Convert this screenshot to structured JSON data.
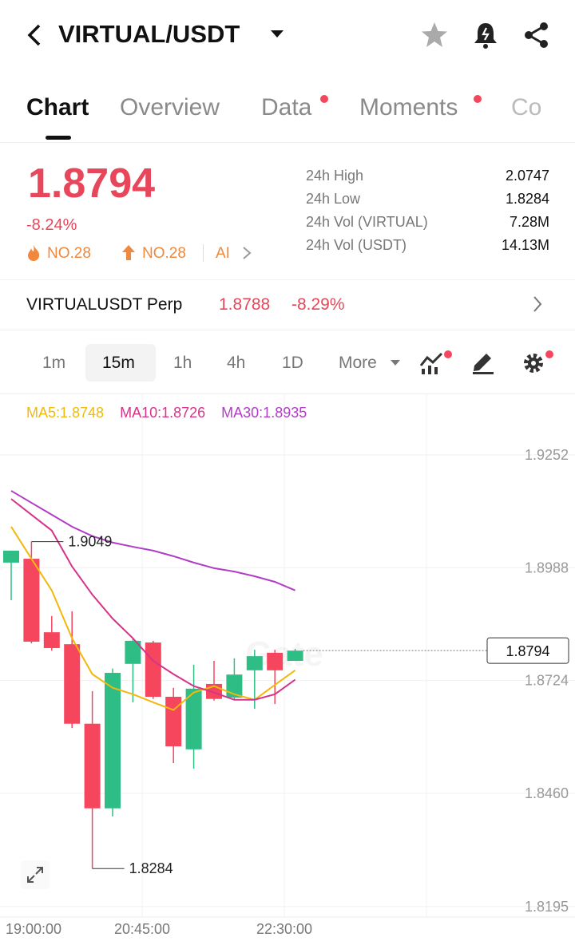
{
  "header": {
    "title": "VIRTUAL/USDT"
  },
  "tabs": [
    "Chart",
    "Overview",
    "Data",
    "Moments",
    "Co"
  ],
  "ticker": {
    "price": "1.8794",
    "change": "-8.24%",
    "badges": [
      "NO.28",
      "NO.28",
      "AI"
    ]
  },
  "stats": [
    {
      "label": "24h High",
      "value": "2.0747"
    },
    {
      "label": "24h Low",
      "value": "1.8284"
    },
    {
      "label": "24h Vol (VIRTUAL)",
      "value": "7.28M"
    },
    {
      "label": "24h Vol (USDT)",
      "value": "14.13M"
    }
  ],
  "perp": {
    "name": "VIRTUALUSDT Perp",
    "price": "1.8788",
    "change": "-8.29%"
  },
  "timeframes": [
    "1m",
    "15m",
    "1h",
    "4h",
    "1D",
    "More"
  ],
  "chart_data": {
    "type": "candlestick",
    "watermark": "Gate",
    "up_color": "#2ebd85",
    "down_color": "#f6465d",
    "candles": [
      {
        "open": 1.9,
        "high": 1.9028,
        "low": 1.8912,
        "close": 1.9028
      },
      {
        "open": 1.9009,
        "high": 1.9049,
        "low": 1.8811,
        "close": 1.8815
      },
      {
        "open": 1.8837,
        "high": 1.8875,
        "low": 1.8794,
        "close": 1.88
      },
      {
        "open": 1.8809,
        "high": 1.8886,
        "low": 1.8613,
        "close": 1.8623
      },
      {
        "open": 1.8623,
        "high": 1.8699,
        "low": 1.8284,
        "close": 1.8425
      },
      {
        "open": 1.8425,
        "high": 1.8752,
        "low": 1.8406,
        "close": 1.8742
      },
      {
        "open": 1.8763,
        "high": 1.8822,
        "low": 1.8673,
        "close": 1.8817
      },
      {
        "open": 1.8813,
        "high": 1.8817,
        "low": 1.8681,
        "close": 1.8686
      },
      {
        "open": 1.8686,
        "high": 1.8707,
        "low": 1.8531,
        "close": 1.857
      },
      {
        "open": 1.8563,
        "high": 1.8761,
        "low": 1.8518,
        "close": 1.8705
      },
      {
        "open": 1.8716,
        "high": 1.877,
        "low": 1.8677,
        "close": 1.8681
      },
      {
        "open": 1.8684,
        "high": 1.8776,
        "low": 1.8679,
        "close": 1.8738
      },
      {
        "open": 1.8748,
        "high": 1.8796,
        "low": 1.8658,
        "close": 1.8781
      },
      {
        "open": 1.8789,
        "high": 1.8796,
        "low": 1.8669,
        "close": 1.8748
      },
      {
        "open": 1.877,
        "high": 1.8798,
        "low": 1.877,
        "close": 1.8794
      }
    ],
    "series": [
      {
        "name": "MA5:1.8748",
        "color": "#f0b90b",
        "values": [
          1.9084,
          1.9009,
          1.8935,
          1.8823,
          1.8739,
          1.8707,
          1.8692,
          1.8673,
          1.8655,
          1.8696,
          1.8711,
          1.8692,
          1.8679,
          1.8714,
          1.8748
        ]
      },
      {
        "name": "MA10:1.8726",
        "color": "#d6338a",
        "values": [
          1.9149,
          1.9112,
          1.9075,
          1.8991,
          1.8925,
          1.8869,
          1.8823,
          1.877,
          1.8739,
          1.8711,
          1.8696,
          1.8679,
          1.8679,
          1.8692,
          1.8726
        ]
      },
      {
        "name": "MA30:1.8935",
        "color": "#b13cc7",
        "values": [
          1.9168,
          1.914,
          1.9112,
          1.9084,
          1.9062,
          1.9047,
          1.9037,
          1.9028,
          1.9015,
          1.9,
          1.8987,
          1.8979,
          1.8968,
          1.8955,
          1.8935
        ]
      }
    ],
    "ylim": [
      1.8178,
      1.9392
    ],
    "yticks": [
      1.9252,
      1.8988,
      1.8724,
      {
        "value": 1.846,
        "label": "1.8460"
      },
      1.8195
    ],
    "xtick_labels": [
      "19:00:00",
      "20:45:00",
      "22:30:00"
    ],
    "high_marker": 1.9049,
    "low_marker": 1.8284,
    "last_price": 1.8794,
    "grid": true
  }
}
